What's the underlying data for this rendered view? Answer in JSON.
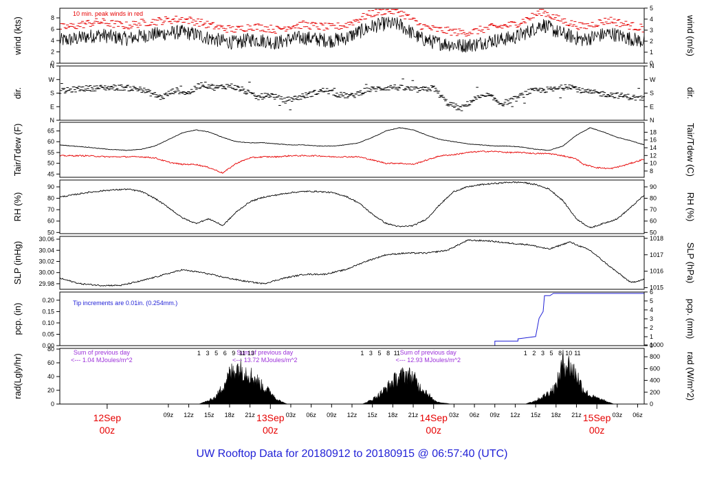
{
  "title": "UW Rooftop Data for 20180912  to  20180915 @ 06:57:40  (UTC)",
  "colors": {
    "frame": "#000000",
    "text": "#000000",
    "title": "#1f1fd6",
    "date_labels": "#e60000",
    "peak": "#e60000",
    "dewpoint": "#e60000",
    "precip": "#1f1fd6",
    "radiation_note": "#9b30d9"
  },
  "x_axis": {
    "range_hours": [
      -6.96,
      78.96
    ],
    "hour_ticks": [
      {
        "h": 9,
        "label": "09z"
      },
      {
        "h": 12,
        "label": "12z"
      },
      {
        "h": 15,
        "label": "15z"
      },
      {
        "h": 18,
        "label": "18z"
      },
      {
        "h": 21,
        "label": "21z"
      },
      {
        "h": 27,
        "label": "03z"
      },
      {
        "h": 30,
        "label": "06z"
      },
      {
        "h": 33,
        "label": "09z"
      },
      {
        "h": 36,
        "label": "12z"
      },
      {
        "h": 39,
        "label": "15z"
      },
      {
        "h": 42,
        "label": "18z"
      },
      {
        "h": 45,
        "label": "21z"
      },
      {
        "h": 51,
        "label": "03z"
      },
      {
        "h": 54,
        "label": "06z"
      },
      {
        "h": 57,
        "label": "09z"
      },
      {
        "h": 60,
        "label": "12z"
      },
      {
        "h": 63,
        "label": "15z"
      },
      {
        "h": 66,
        "label": "18z"
      },
      {
        "h": 69,
        "label": "21z"
      },
      {
        "h": 75,
        "label": "03z"
      },
      {
        "h": 78,
        "label": "06z"
      }
    ],
    "day_labels": [
      {
        "h": 0,
        "day": "12Sep",
        "hour": "00z"
      },
      {
        "h": 24,
        "day": "13Sep",
        "hour": "00z"
      },
      {
        "h": 48,
        "day": "14Sep",
        "hour": "00z"
      },
      {
        "h": 72,
        "day": "15Sep",
        "hour": "00z"
      }
    ]
  },
  "chart_data": [
    {
      "type": "line",
      "name": "wind",
      "ylabel_left": "wind (kts)",
      "ylabel_right": "wind (m/s)",
      "ylim_left": [
        0,
        9.7
      ],
      "ticks_left": [
        0,
        2,
        4,
        6,
        8
      ],
      "ticks_right": [
        0,
        1,
        2,
        3,
        4,
        5
      ],
      "right_factor": 0.5144,
      "note": "10 min. peak winds in red",
      "hours": [
        -7,
        -5,
        -3,
        -1,
        1,
        3,
        5,
        7,
        9,
        11,
        13,
        15,
        17,
        19,
        21,
        23,
        25,
        27,
        29,
        31,
        33,
        35,
        37,
        39,
        41,
        43,
        45,
        46,
        48,
        50,
        52,
        54,
        56,
        58,
        60,
        62,
        64,
        66,
        68,
        70,
        72,
        74,
        76,
        79
      ],
      "speed_kts": [
        4.0,
        4.2,
        4.7,
        5.0,
        4.6,
        4.3,
        4.8,
        5.1,
        5.3,
        5.5,
        5.1,
        4.4,
        3.9,
        3.6,
        4.2,
        4.0,
        3.6,
        4.3,
        4.5,
        4.2,
        4.0,
        4.4,
        5.5,
        6.5,
        7.0,
        6.8,
        5.2,
        4.4,
        3.7,
        3.4,
        3.1,
        3.3,
        3.9,
        4.2,
        4.6,
        5.6,
        6.9,
        5.6,
        4.8,
        4.1,
        4.8,
        5.3,
        4.6,
        3.8
      ]
    },
    {
      "type": "scatter",
      "name": "direction",
      "ylabel_left": "dir.",
      "ylabel_right": "dir.",
      "ylim": [
        0,
        360
      ],
      "ticks": [
        {
          "v": 0,
          "label": "N"
        },
        {
          "v": 90,
          "label": "E"
        },
        {
          "v": 180,
          "label": "S"
        },
        {
          "v": 270,
          "label": "W"
        },
        {
          "v": 360,
          "label": "N"
        }
      ],
      "hours": [
        -7,
        -4,
        -1,
        2,
        5,
        8,
        10,
        12,
        14,
        16,
        18,
        20,
        22,
        24,
        26,
        28,
        30,
        32,
        34,
        36,
        38,
        40,
        42,
        44,
        46,
        48,
        50,
        52,
        54,
        56,
        58,
        60,
        62,
        64,
        66,
        68,
        70,
        72,
        74,
        76,
        79
      ],
      "dir_deg": [
        190,
        210,
        215,
        218,
        205,
        150,
        200,
        180,
        240,
        215,
        230,
        200,
        150,
        170,
        130,
        150,
        175,
        200,
        170,
        160,
        200,
        210,
        220,
        210,
        200,
        215,
        115,
        75,
        140,
        165,
        110,
        140,
        190,
        200,
        205,
        230,
        190,
        180,
        170,
        160,
        140
      ]
    },
    {
      "type": "line",
      "name": "temperature",
      "ylabel_left": "Tair/Tdew (F)",
      "ylabel_right": "Tair/Tdew (C)",
      "ylim_left": [
        43.5,
        69
      ],
      "ticks_left": [
        45,
        50,
        55,
        60,
        65
      ],
      "ticks_right": [
        8,
        10,
        12,
        14,
        16,
        18
      ],
      "series": [
        {
          "legend": "Tair",
          "hours": [
            -7,
            -3,
            0,
            3,
            5,
            7,
            9,
            11,
            13,
            15,
            17,
            19,
            21,
            23,
            25,
            27,
            29,
            31,
            33,
            35,
            37,
            39,
            41,
            43,
            45,
            47,
            49,
            51,
            53,
            55,
            57,
            59,
            61,
            63,
            65,
            67,
            69,
            71,
            73,
            75,
            77,
            79
          ],
          "values_f": [
            58.5,
            57.5,
            56.5,
            56.0,
            56.5,
            58.0,
            61.0,
            64.0,
            65.5,
            64.5,
            62.0,
            60.0,
            59.5,
            59.5,
            59.0,
            58.5,
            58.5,
            58.0,
            58.0,
            58.5,
            59.5,
            62.0,
            65.0,
            66.5,
            65.5,
            63.0,
            61.0,
            60.0,
            59.0,
            58.5,
            58.0,
            58.0,
            57.5,
            56.5,
            56.0,
            58.0,
            63.0,
            66.5,
            64.5,
            62.0,
            60.5,
            58.5
          ]
        },
        {
          "legend": "Tdew",
          "hours": [
            -7,
            -3,
            0,
            3,
            5,
            7,
            9,
            11,
            13,
            15,
            17,
            19,
            21,
            23,
            25,
            27,
            29,
            31,
            33,
            35,
            37,
            39,
            41,
            43,
            45,
            47,
            49,
            51,
            53,
            55,
            57,
            59,
            61,
            63,
            65,
            67,
            69,
            70,
            72,
            74,
            76,
            79
          ],
          "values_f": [
            53.5,
            53.5,
            53.0,
            53.0,
            53.0,
            52.5,
            50.5,
            49.5,
            49.5,
            48.0,
            45.5,
            50.0,
            52.5,
            53.0,
            53.0,
            53.5,
            53.5,
            53.5,
            53.0,
            53.0,
            53.0,
            51.5,
            50.0,
            50.0,
            49.5,
            51.5,
            53.5,
            54.0,
            55.0,
            55.5,
            55.5,
            55.0,
            55.0,
            54.5,
            54.5,
            53.5,
            52.0,
            49.5,
            48.0,
            47.5,
            49.0,
            52.0
          ]
        }
      ]
    },
    {
      "type": "line",
      "name": "humidity",
      "ylabel_left": "RH (%)",
      "ylabel_right": "RH (%)",
      "ylim": [
        49,
        96
      ],
      "ticks": [
        50,
        60,
        70,
        80,
        90
      ],
      "hours": [
        -7,
        -3,
        0,
        3,
        5,
        7,
        9,
        11,
        13,
        15,
        17,
        19,
        21,
        23,
        25,
        27,
        29,
        31,
        33,
        35,
        37,
        39,
        41,
        43,
        45,
        47,
        49,
        51,
        53,
        55,
        57,
        59,
        61,
        63,
        65,
        67,
        69,
        71,
        73,
        75,
        77,
        79
      ],
      "values": [
        81,
        85,
        87,
        88,
        86,
        80,
        72,
        63,
        58,
        62,
        56,
        68,
        77,
        81,
        83,
        85,
        86,
        86,
        85,
        82,
        76,
        66,
        58,
        55,
        56,
        62,
        75,
        86,
        90,
        92,
        93,
        94,
        94,
        92,
        88,
        78,
        62,
        54,
        58,
        62,
        72,
        83
      ]
    },
    {
      "type": "line",
      "name": "pressure",
      "ylabel_left": "SLP (inHg)",
      "ylabel_right": "SLP (hPa)",
      "ylim_left": [
        29.97,
        30.065
      ],
      "ticks_left": [
        29.98,
        30.0,
        30.02,
        30.04,
        30.06
      ],
      "ticks_right": [
        1015,
        1016,
        1017,
        1018
      ],
      "hours": [
        -7,
        -4,
        -1,
        2,
        5,
        8,
        11,
        14,
        17,
        20,
        23,
        26,
        29,
        32,
        35,
        38,
        41,
        44,
        47,
        50,
        53,
        56,
        59,
        62,
        65,
        68,
        71,
        74,
        77,
        79
      ],
      "values": [
        29.99,
        29.98,
        29.977,
        29.977,
        29.985,
        29.995,
        30.005,
        30.0,
        29.992,
        29.985,
        29.98,
        29.99,
        29.997,
        29.997,
        30.005,
        30.02,
        30.032,
        30.035,
        30.035,
        30.04,
        30.058,
        30.057,
        30.053,
        30.05,
        30.042,
        30.055,
        30.04,
        30.01,
        29.982,
        29.988
      ]
    },
    {
      "type": "line",
      "name": "precipitation",
      "ylabel_left": "pcp. (in)",
      "ylabel_right": "pcp. (mm)",
      "ylim_left": [
        0,
        0.236
      ],
      "ticks_left": [
        0.0,
        0.05,
        0.1,
        0.15,
        0.2
      ],
      "ticks_right": [
        0,
        1,
        2,
        3,
        4,
        5,
        6
      ],
      "note": "Tip increments are 0.01in. (0.254mm.)",
      "hours": [
        -7,
        57,
        57,
        60.4,
        60.4,
        63.0,
        63.5,
        64.1,
        64.3,
        65.1,
        65.6,
        66.0,
        79
      ],
      "values_in": [
        0,
        0,
        0.02,
        0.02,
        0.03,
        0.04,
        0.12,
        0.15,
        0.22,
        0.22,
        0.23,
        0.23,
        0.23
      ]
    },
    {
      "type": "area",
      "name": "radiation",
      "ylabel_left": "rad(Lgly/hr)",
      "ylabel_right": "rad (W/m^2)",
      "ylim_left": [
        0,
        81
      ],
      "ticks_left": [
        0,
        20,
        40,
        60,
        80
      ],
      "ticks_right": [
        0,
        200,
        400,
        600,
        800,
        1000
      ],
      "daily_summaries": [
        {
          "h": 0,
          "line1": "Sum of previous day",
          "line2": "<--- 1.04 MJoules/m^2"
        },
        {
          "h": 24,
          "line1": "Sum of previous day",
          "line2": "<--- 13.72 MJoules/m^2"
        },
        {
          "h": 48,
          "line1": "Sum of previous day",
          "line2": "<--- 12.93 MJoules/m^2"
        }
      ],
      "hour_marks": [
        {
          "day": 0,
          "labels": [
            "1",
            "3",
            "5",
            "6",
            "9",
            "11",
            "13"
          ]
        },
        {
          "day": 24,
          "labels": [
            "1",
            "3",
            "5",
            "8",
            "11"
          ]
        },
        {
          "day": 48,
          "labels": [
            "1",
            "2",
            "3",
            "5",
            "8",
            "10",
            "11"
          ]
        }
      ],
      "hours": [
        -7,
        13.5,
        14,
        15,
        16,
        17,
        18,
        19,
        20,
        21,
        22,
        23,
        24,
        25,
        26,
        26.5,
        37.5,
        38,
        39,
        40,
        41,
        42,
        43,
        44,
        45,
        46,
        47,
        48,
        49,
        50,
        50.5,
        61.5,
        62,
        63,
        64,
        65,
        66,
        67,
        68,
        69,
        70,
        71,
        72,
        73,
        74,
        74.5,
        79
      ],
      "values": [
        0,
        0,
        2,
        6,
        12,
        30,
        50,
        62,
        58,
        50,
        40,
        28,
        20,
        8,
        2,
        0,
        0,
        2,
        8,
        16,
        26,
        38,
        46,
        50,
        45,
        28,
        20,
        6,
        2,
        1,
        0,
        0,
        2,
        6,
        12,
        20,
        30,
        70,
        65,
        50,
        25,
        14,
        10,
        6,
        2,
        0,
        0
      ]
    }
  ]
}
